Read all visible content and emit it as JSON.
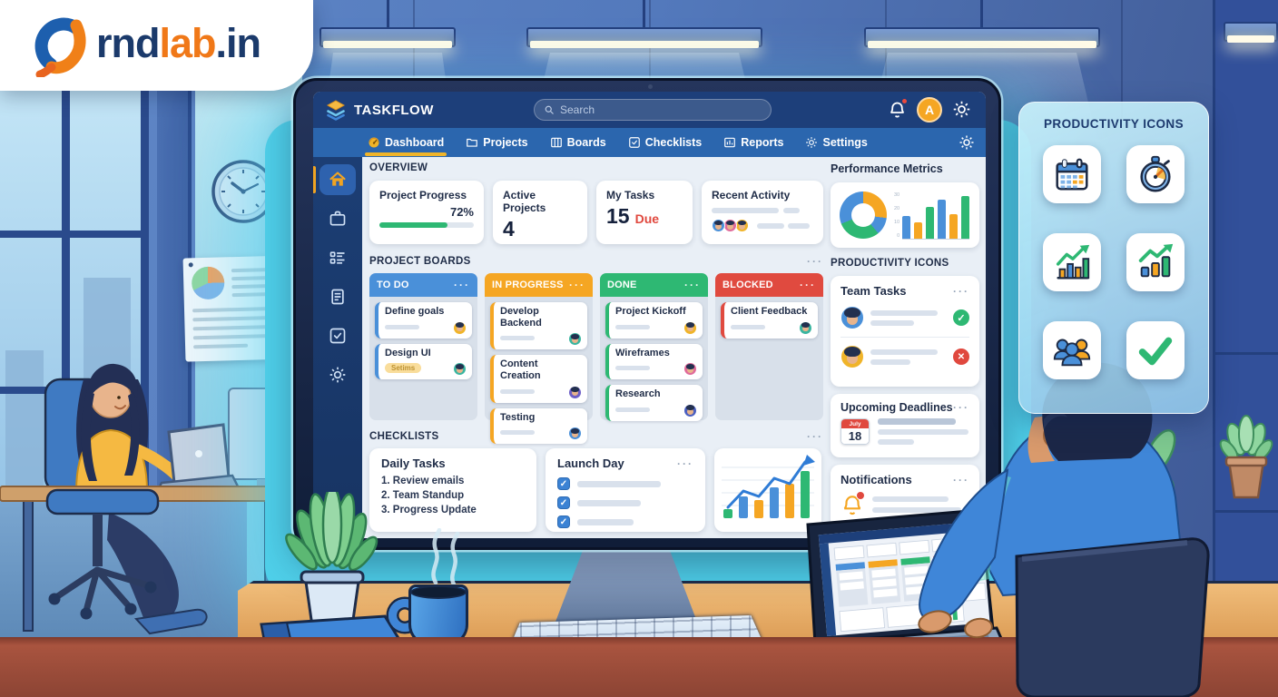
{
  "logo": {
    "prefix": "rnd",
    "mid": "lab",
    "suffix": ".in"
  },
  "panel": {
    "title": "PRODUCTIVITY ICONS",
    "icons": [
      "calendar-icon",
      "stopwatch-icon",
      "growth-chart-bars-icon",
      "growth-chart-icon",
      "team-icon",
      "checkmark-icon"
    ]
  },
  "app": {
    "title": "TASKFLOW",
    "dots": "···",
    "check_glyph": "✓",
    "cross_glyph": "✕",
    "search_placeholder": "Search",
    "avatar_initial": "A",
    "nav": [
      {
        "label": "Dashboard",
        "icon": "gauge-icon",
        "active": true
      },
      {
        "label": "Projects",
        "icon": "folder-icon"
      },
      {
        "label": "Boards",
        "icon": "board-icon"
      },
      {
        "label": "Checklists",
        "icon": "check-square-icon"
      },
      {
        "label": "Reports",
        "icon": "bar-chart-icon"
      },
      {
        "label": "Settings",
        "icon": "gear-icon"
      }
    ],
    "sidebar": [
      {
        "icon": "home-icon",
        "active": true
      },
      {
        "icon": "briefcase-icon"
      },
      {
        "icon": "kanban-icon"
      },
      {
        "icon": "document-icon"
      },
      {
        "icon": "check-square-icon"
      },
      {
        "icon": "gear-icon"
      }
    ],
    "overview": {
      "title": "OVERVIEW",
      "progress_card": {
        "title": "Project Progress",
        "value": "72%",
        "percent": 72
      },
      "active_card": {
        "title": "Active Projects",
        "value": "4"
      },
      "tasks_card": {
        "title": "My Tasks",
        "value": "15",
        "suffix": "Due"
      },
      "activity_card": {
        "title": "Recent Activity"
      }
    },
    "boards": {
      "title": "PROJECT BOARDS",
      "columns": [
        {
          "name": "TO DO",
          "color": "#4a90d9",
          "cards": [
            {
              "title": "Define goals",
              "avatar": "#f0b429"
            },
            {
              "title": "Design UI",
              "tag": "Setims",
              "avatar": "#3ab5a0"
            }
          ]
        },
        {
          "name": "IN PROGRESS",
          "color": "#f5a623",
          "cards": [
            {
              "title": "Develop Backend",
              "avatar": "#3ab5a0"
            },
            {
              "title": "Content Creation",
              "avatar": "#6c5fc7"
            },
            {
              "title": "Testing",
              "avatar": "#4a90d9"
            }
          ]
        },
        {
          "name": "DONE",
          "color": "#2eb873",
          "cards": [
            {
              "title": "Project Kickoff",
              "avatar": "#f0b429"
            },
            {
              "title": "Wireframes",
              "avatar": "#e06a9a"
            },
            {
              "title": "Research",
              "avatar": "#4a5fc0"
            }
          ]
        },
        {
          "name": "BLOCKED",
          "color": "#e04a3f",
          "cards": [
            {
              "title": "Client Feedback",
              "avatar": "#3ab5a0"
            }
          ]
        }
      ]
    },
    "checklists": {
      "title": "CHECKLISTS",
      "daily": {
        "title": "Daily Tasks",
        "items": [
          "1. Review emails",
          "2. Team Standup",
          "3. Progress Update"
        ]
      },
      "launch": {
        "title": "Launch Day",
        "rows": 3
      }
    },
    "metrics": {
      "title": "Performance Metrics"
    },
    "widgets": {
      "title": "PRODUCTIVITY ICONS",
      "team": {
        "title": "Team Tasks"
      },
      "deadlines": {
        "title": "Upcoming Deadlines",
        "month": "July",
        "day": "18"
      },
      "notifications": {
        "title": "Notifications"
      }
    }
  },
  "chart_data": [
    {
      "type": "pie",
      "title": "Performance Metrics donut",
      "donut": true,
      "slices": [
        {
          "color": "#f5a623",
          "value": 27
        },
        {
          "color": "#4a90d9",
          "value": 12
        },
        {
          "color": "#2eb873",
          "value": 30
        },
        {
          "color": "#4a90d9",
          "value": 31
        }
      ]
    },
    {
      "type": "bar",
      "title": "Performance Metrics bars",
      "values": [
        15,
        11,
        21,
        26,
        16,
        28
      ],
      "colors": [
        "#4a90d9",
        "#f5a623",
        "#2eb873",
        "#4a90d9",
        "#f5a623",
        "#2eb873"
      ],
      "ylim": [
        0,
        30
      ],
      "yticks": [
        "30",
        "20",
        "10",
        "0"
      ]
    },
    {
      "type": "bar+line",
      "title": "Checklists trend chart",
      "bar_values": [
        10,
        24,
        20,
        34,
        38,
        52
      ],
      "bar_colors": [
        "#2eb873",
        "#4a90d9",
        "#f5a623",
        "#4a90d9",
        "#f5a623",
        "#2eb873"
      ],
      "line_values": [
        12,
        30,
        24,
        44,
        38,
        62
      ],
      "line_color": "#2f7cd6"
    }
  ]
}
